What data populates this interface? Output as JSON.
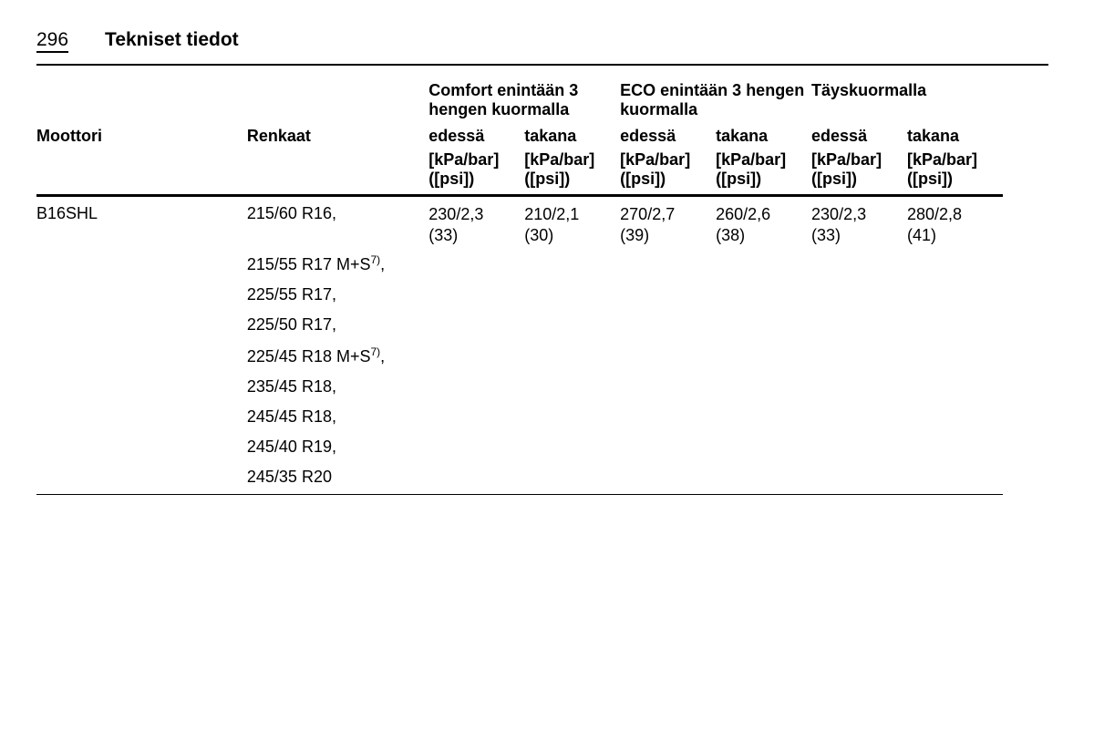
{
  "page": {
    "number": "296",
    "title": "Tekniset tiedot"
  },
  "headers": {
    "engine": "Moottori",
    "tires": "Renkaat",
    "group_comfort": "Comfort enintään 3 hengen kuormalla",
    "group_eco": "ECO enintään 3 hengen kuormalla",
    "group_full": "Täyskuormalla",
    "front": "edessä",
    "rear": "takana",
    "unit": "[kPa/bar] ([psi])"
  },
  "engine": "B16SHL",
  "tires": [
    "215/60 R16,",
    "215/55 R17 M+S^7),",
    "225/55 R17,",
    "225/50 R17,",
    "225/45 R18 M+S^7),",
    "235/45 R18,",
    "245/45 R18,",
    "245/40 R19,",
    "245/35 R20"
  ],
  "pressures": {
    "comfort_front": "230/2,3\n(33)",
    "comfort_rear": "210/2,1\n(30)",
    "eco_front": "270/2,7\n(39)",
    "eco_rear": "260/2,6\n(38)",
    "full_front": "230/2,3\n(33)",
    "full_rear": "280/2,8\n(41)"
  }
}
